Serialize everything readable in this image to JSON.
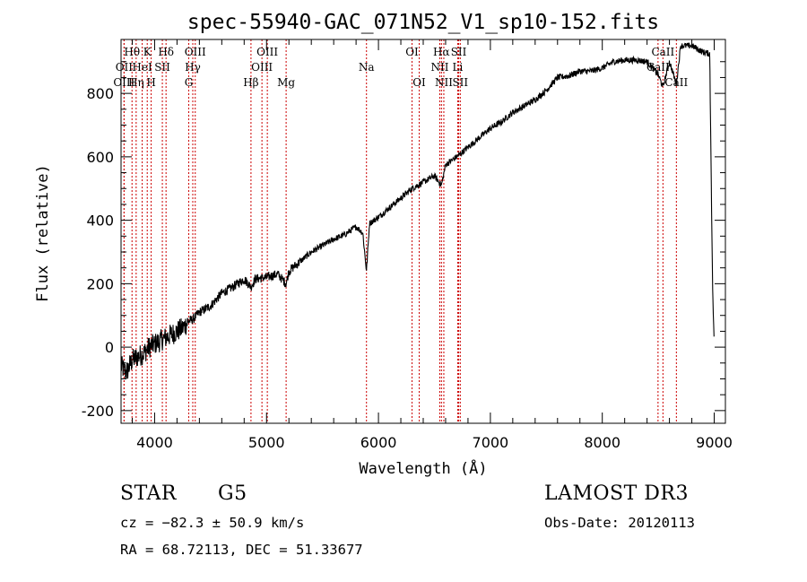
{
  "chart_data": {
    "type": "line",
    "title": "spec-55940-GAC_071N52_V1_sp10-152.fits",
    "xlabel": "Wavelength (Å)",
    "ylabel": "Flux (relative)",
    "xlim": [
      3700,
      9100
    ],
    "ylim": [
      -240,
      970
    ],
    "x_ticks": [
      4000,
      5000,
      6000,
      7000,
      8000,
      9000
    ],
    "y_ticks": [
      -200,
      0,
      200,
      400,
      600,
      800
    ],
    "series": [
      {
        "name": "flux",
        "x": [
          3700,
          3750,
          3800,
          3850,
          3900,
          3950,
          4000,
          4050,
          4100,
          4150,
          4200,
          4250,
          4300,
          4350,
          4400,
          4500,
          4600,
          4700,
          4800,
          4861,
          4900,
          5000,
          5100,
          5175,
          5200,
          5300,
          5400,
          5500,
          5600,
          5700,
          5800,
          5860,
          5893,
          5920,
          6000,
          6100,
          6200,
          6300,
          6400,
          6500,
          6563,
          6600,
          6700,
          6800,
          6900,
          7000,
          7100,
          7200,
          7300,
          7400,
          7500,
          7600,
          7700,
          7800,
          7900,
          8000,
          8100,
          8200,
          8300,
          8400,
          8498,
          8542,
          8600,
          8662,
          8700,
          8800,
          8900,
          8960,
          8985,
          9000
        ],
        "y": [
          -60,
          -80,
          -40,
          -30,
          -20,
          0,
          10,
          20,
          30,
          40,
          50,
          60,
          80,
          90,
          110,
          130,
          170,
          190,
          215,
          190,
          215,
          220,
          230,
          200,
          240,
          270,
          300,
          320,
          340,
          355,
          380,
          360,
          240,
          390,
          410,
          440,
          470,
          500,
          520,
          540,
          510,
          575,
          600,
          630,
          660,
          690,
          710,
          740,
          760,
          780,
          810,
          850,
          855,
          870,
          870,
          880,
          900,
          905,
          905,
          900,
          860,
          820,
          900,
          830,
          950,
          950,
          930,
          925,
          200,
          0
        ]
      }
    ],
    "spectral_lines": [
      {
        "label": "Hθ",
        "wavelength": 3798,
        "row": 1
      },
      {
        "label": "OII",
        "wavelength": 3727,
        "row": 2
      },
      {
        "label": "OIII",
        "wavelength": 3727,
        "row": 3
      },
      {
        "label": "Hη",
        "wavelength": 3835,
        "row": 3
      },
      {
        "label": "K",
        "wavelength": 3934,
        "row": 1
      },
      {
        "label": "HeI",
        "wavelength": 3889,
        "row": 2
      },
      {
        "label": "H",
        "wavelength": 3969,
        "row": 3
      },
      {
        "label": "Hδ",
        "wavelength": 4102,
        "row": 1
      },
      {
        "label": "SII",
        "wavelength": 4069,
        "row": 2
      },
      {
        "label": "OIII",
        "wavelength": 4363,
        "row": 1
      },
      {
        "label": "Hγ",
        "wavelength": 4341,
        "row": 2
      },
      {
        "label": "G",
        "wavelength": 4305,
        "row": 3
      },
      {
        "label": "Hβ",
        "wavelength": 4861,
        "row": 3
      },
      {
        "label": "OIII",
        "wavelength": 5007,
        "row": 1
      },
      {
        "label": "OIII",
        "wavelength": 4959,
        "row": 2
      },
      {
        "label": "Mg",
        "wavelength": 5175,
        "row": 3
      },
      {
        "label": "Na",
        "wavelength": 5893,
        "row": 2
      },
      {
        "label": "OI",
        "wavelength": 6300,
        "row": 1
      },
      {
        "label": "OI",
        "wavelength": 6364,
        "row": 3
      },
      {
        "label": "Hα",
        "wavelength": 6563,
        "row": 1
      },
      {
        "label": "NII",
        "wavelength": 6548,
        "row": 2
      },
      {
        "label": "NII",
        "wavelength": 6584,
        "row": 3
      },
      {
        "label": "SII",
        "wavelength": 6717,
        "row": 1
      },
      {
        "label": "Li",
        "wavelength": 6708,
        "row": 2
      },
      {
        "label": "SII",
        "wavelength": 6731,
        "row": 3
      },
      {
        "label": "CaII",
        "wavelength": 8542,
        "row": 1
      },
      {
        "label": "CaII",
        "wavelength": 8498,
        "row": 2
      },
      {
        "label": "CaII",
        "wavelength": 8662,
        "row": 3
      }
    ],
    "line_color": "#000000",
    "marker_color": "#cc0000"
  },
  "info": {
    "object_class": "STAR",
    "subclass": "G5",
    "survey": "LAMOST DR3",
    "redshift": "cz = −82.3 ± 50.9 km/s",
    "obs_date": "Obs-Date: 20120113",
    "coords": "RA =  68.72113, DEC =  51.33677"
  }
}
